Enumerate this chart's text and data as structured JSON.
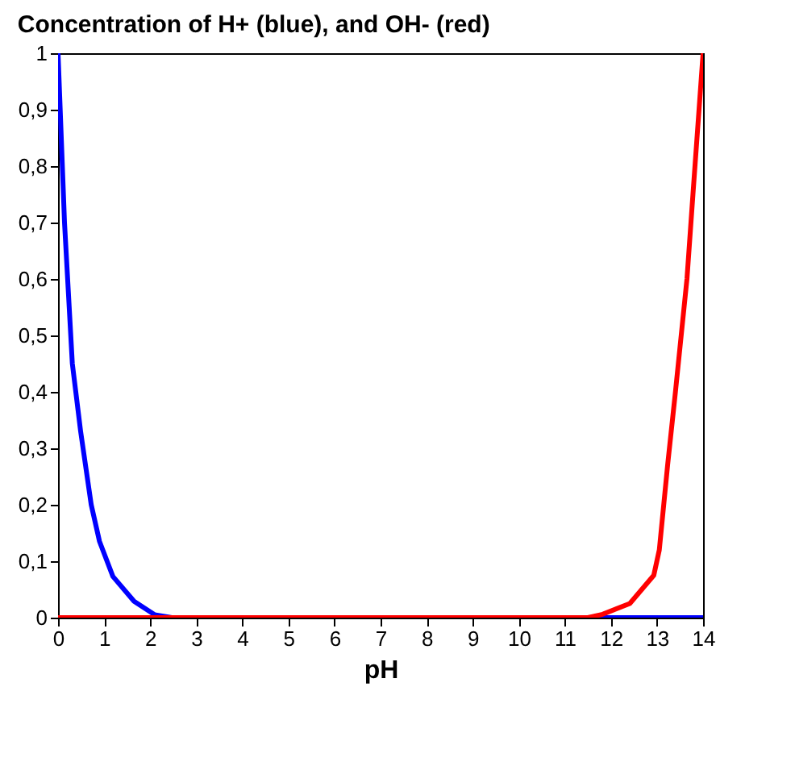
{
  "chart_data": {
    "type": "line",
    "title": "Concentration of H+ (blue), and OH- (red)",
    "xlabel": "pH",
    "xlim": [
      0,
      14
    ],
    "xticks": [
      0,
      1,
      2,
      3,
      4,
      5,
      6,
      7,
      8,
      9,
      10,
      11,
      12,
      13,
      14
    ],
    "ylim": [
      0,
      1
    ],
    "yticks": [
      0,
      {
        "value": 0.1,
        "label": "0,1"
      },
      {
        "value": 0.2,
        "label": "0,2"
      },
      {
        "value": 0.3,
        "label": "0,3"
      },
      {
        "value": 0.4,
        "label": "0,4"
      },
      {
        "value": 0.5,
        "label": "0,5"
      },
      {
        "value": 0.6,
        "label": "0,6"
      },
      {
        "value": 0.7,
        "label": "0,7"
      },
      {
        "value": 0.8,
        "label": "0,8"
      },
      {
        "value": 0.9,
        "label": "0,9"
      },
      1
    ],
    "grid": false,
    "legend": false,
    "marker": "none",
    "line_style": "solid",
    "series": [
      {
        "color": "#0000ff",
        "x": [
          0,
          0.14,
          0.31,
          0.49,
          0.72,
          0.9,
          1.19,
          1.65,
          2.1,
          2.47,
          14
        ],
        "values": [
          1,
          0.7,
          0.45,
          0.33,
          0.2,
          0.135,
          0.073,
          0.029,
          0.005,
          0,
          0
        ]
      },
      {
        "color": "#ff0000",
        "x": [
          0,
          11.5,
          11.82,
          12.41,
          12.93,
          13.05,
          13.23,
          13.4,
          13.65,
          13.78,
          14
        ],
        "values": [
          0,
          0,
          0.006,
          0.025,
          0.075,
          0.12,
          0.27,
          0.4,
          0.6,
          0.75,
          1
        ]
      }
    ]
  }
}
